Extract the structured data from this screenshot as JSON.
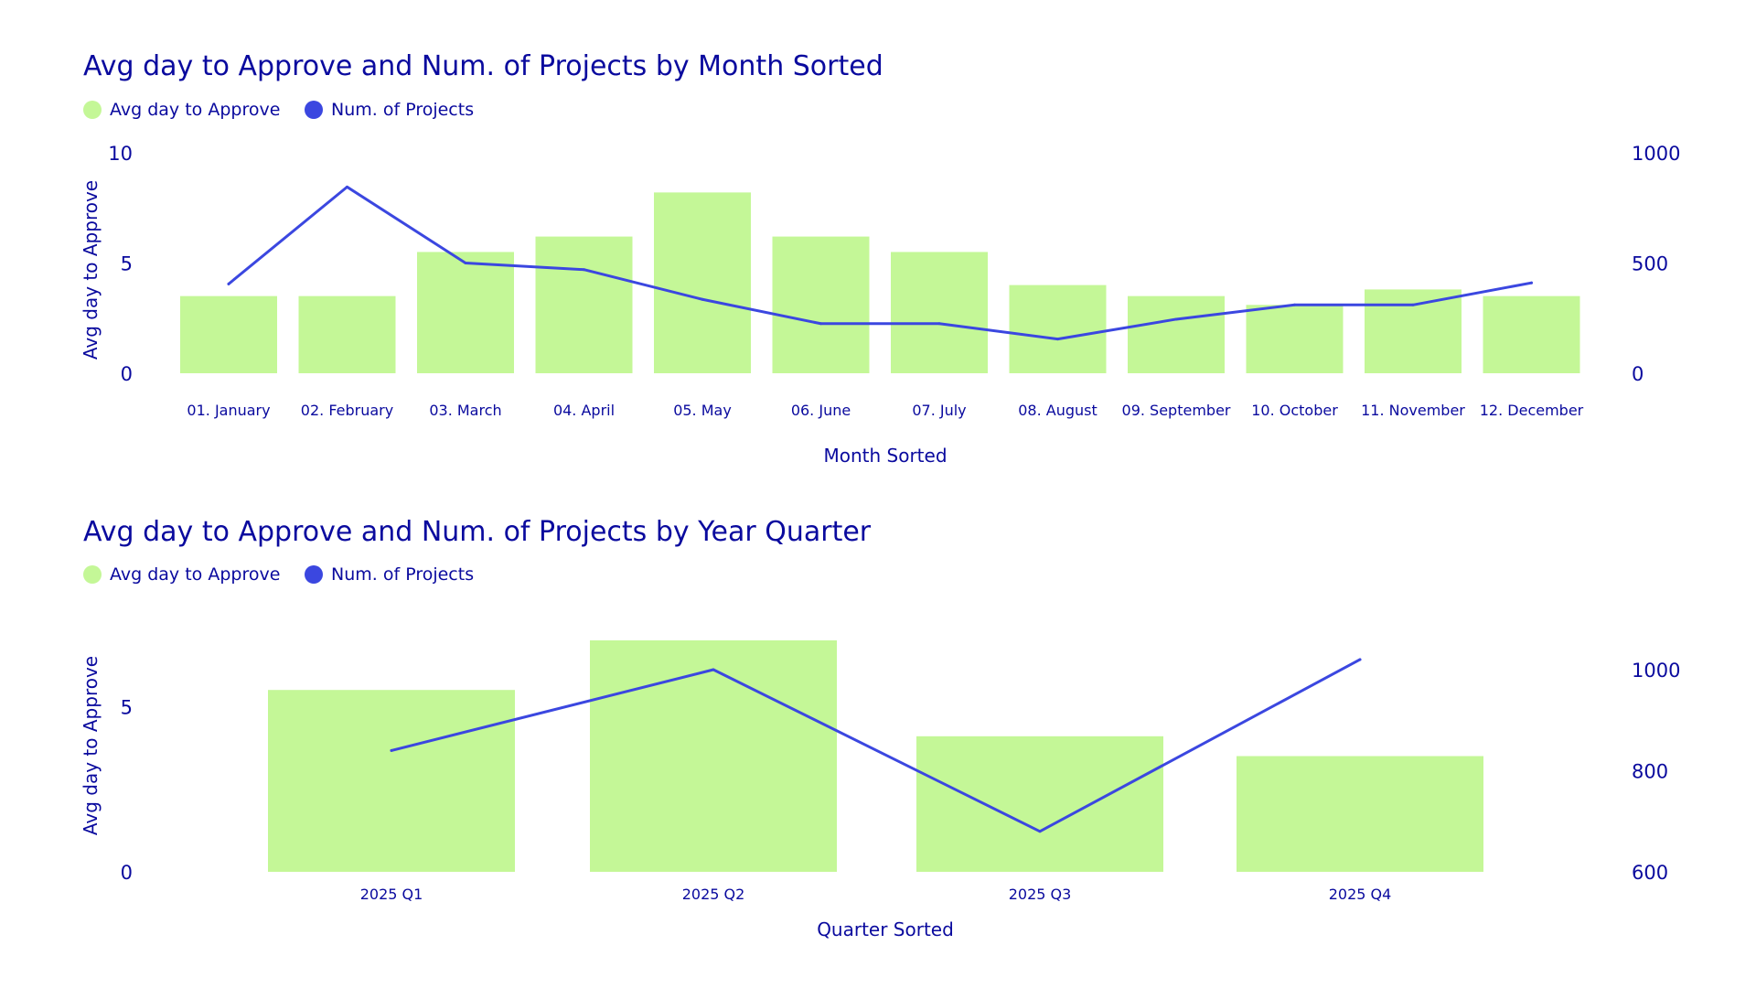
{
  "colors": {
    "bar": "#c4f797",
    "line": "#3b47e0",
    "text": "#0a0a9e"
  },
  "chart_data": [
    {
      "type": "bar",
      "title": "Avg day to Approve and Num. of Projects by Month Sorted",
      "legend": [
        "Avg day to Approve",
        "Num. of Projects"
      ],
      "legend_placement": "top-left",
      "xlabel": "Month Sorted",
      "ylabel": "Avg day to Approve",
      "y2label": "",
      "categories": [
        "01. January",
        "02. February",
        "03. March",
        "04. April",
        "05. May",
        "06. June",
        "07. July",
        "08. August",
        "09. September",
        "10. October",
        "11. November",
        "12. December"
      ],
      "series": [
        {
          "name": "Avg day to Approve",
          "type": "bar",
          "axis": "left",
          "values": [
            3.5,
            3.5,
            5.5,
            6.2,
            8.2,
            6.2,
            5.5,
            4.0,
            3.5,
            3.1,
            3.8,
            3.5
          ]
        },
        {
          "name": "Num. of Projects",
          "type": "line",
          "axis": "right",
          "values": [
            405,
            845,
            500,
            470,
            335,
            225,
            225,
            155,
            245,
            310,
            310,
            410
          ]
        }
      ],
      "ylim": [
        0,
        10
      ],
      "yticks": [
        0,
        5,
        10
      ],
      "y2lim": [
        0,
        1000
      ],
      "y2ticks": [
        0,
        500,
        1000
      ],
      "grid": false
    },
    {
      "type": "bar",
      "title": "Avg day to Approve and Num. of Projects by Year Quarter",
      "legend": [
        "Avg day to Approve",
        "Num. of Projects"
      ],
      "legend_placement": "top-left",
      "xlabel": "Quarter Sorted",
      "ylabel": "Avg day to Approve",
      "y2label": "",
      "categories": [
        "2025 Q1",
        "2025 Q2",
        "2025 Q3",
        "2025 Q4"
      ],
      "series": [
        {
          "name": "Avg day to Approve",
          "type": "bar",
          "axis": "left",
          "values": [
            5.5,
            7.0,
            4.1,
            3.5
          ]
        },
        {
          "name": "Num. of Projects",
          "type": "line",
          "axis": "right",
          "values": [
            840,
            1000,
            680,
            1020
          ]
        }
      ],
      "ylim": [
        0,
        7
      ],
      "yticks": [
        0,
        5
      ],
      "y2lim": [
        600,
        1000
      ],
      "y2ticks": [
        600,
        800,
        1000
      ],
      "grid": false
    }
  ]
}
